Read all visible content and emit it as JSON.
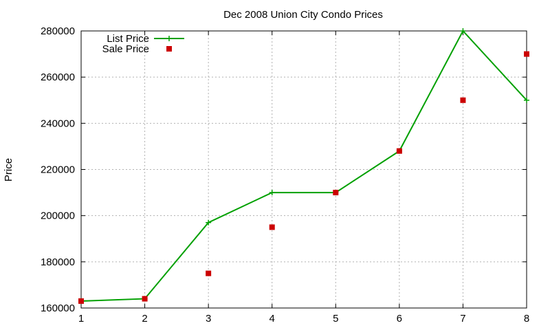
{
  "chart_data": {
    "type": "line",
    "title": "Dec 2008 Union City Condo Prices",
    "xlabel": "",
    "ylabel": "Price",
    "x": [
      1,
      2,
      3,
      4,
      5,
      6,
      7,
      8
    ],
    "xlim": [
      1,
      8
    ],
    "ylim": [
      160000,
      280000
    ],
    "xticks": [
      "1",
      "2",
      "3",
      "4",
      "5",
      "6",
      "7",
      "8"
    ],
    "yticks": [
      "160000",
      "180000",
      "200000",
      "220000",
      "240000",
      "260000",
      "280000"
    ],
    "grid": true,
    "legend_position": "top-left",
    "series": [
      {
        "name": "List Price",
        "style": "line+cross",
        "color": "#00a000",
        "values": [
          163000,
          164000,
          197000,
          210000,
          210000,
          228000,
          280000,
          250000
        ]
      },
      {
        "name": "Sale Price",
        "style": "square-points",
        "color": "#cc0000",
        "values": [
          163000,
          164000,
          175000,
          195000,
          210000,
          228000,
          250000,
          270000
        ]
      }
    ]
  }
}
